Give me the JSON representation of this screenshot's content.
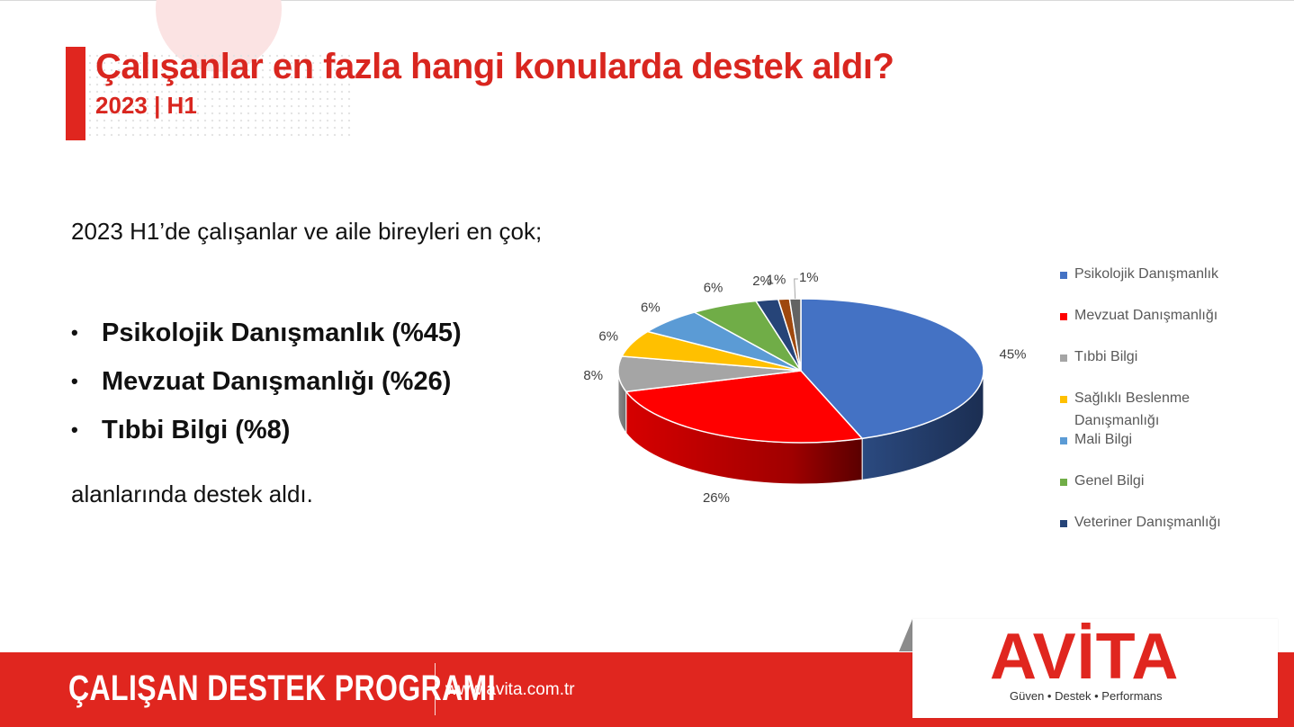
{
  "header": {
    "title": "Çalışanlar en fazla hangi konularda destek aldı?",
    "subtitle": "2023 | H1"
  },
  "body": {
    "intro": "2023 H1’de çalışanlar ve aile bireyleri en çok;",
    "bullets": [
      "Psikolojik Danışmanlık (%45)",
      "Mevzuat Danışmanlığı (%26)",
      "Tıbbi Bilgi (%8)"
    ],
    "outro": "alanlarında destek aldı."
  },
  "chart_data": {
    "type": "pie",
    "categories": [
      "Psikolojik Danışmanlık",
      "Mevzuat Danışmanlığı",
      "Tıbbi Bilgi",
      "Sağlıklı Beslenme Danışmanlığı",
      "Mali Bilgi",
      "Genel Bilgi",
      "Veteriner Danışmanlığı",
      "",
      ""
    ],
    "values": [
      45,
      26,
      8,
      6,
      6,
      6,
      2,
      1,
      1
    ],
    "data_labels": [
      "45%",
      "26%",
      "8%",
      "6%",
      "6%",
      "6%",
      "2%",
      "1%",
      "1%"
    ],
    "colors": [
      "#4472c4",
      "#ff0000",
      "#a5a5a5",
      "#ffc000",
      "#5b9bd5",
      "#70ad47",
      "#264478",
      "#9e480e",
      "#636363"
    ],
    "legend_position": "right",
    "style": "3d"
  },
  "footer": {
    "program": "ÇALIŞAN DESTEK PROGRAMI",
    "url": "www.avita.com.tr"
  },
  "logo": {
    "word": "AVİTA",
    "tagline": "Güven • Destek • Performans"
  }
}
